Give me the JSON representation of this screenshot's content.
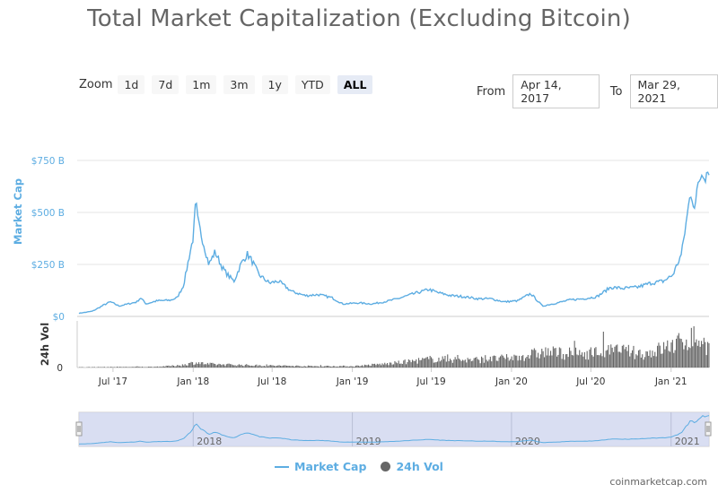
{
  "title": "Total Market Capitalization (Excluding Bitcoin)",
  "zoom": {
    "label": "Zoom",
    "buttons": [
      "1d",
      "7d",
      "1m",
      "3m",
      "1y",
      "YTD",
      "ALL"
    ],
    "active": "ALL"
  },
  "range": {
    "from_label": "From",
    "from_value": "Apr 14, 2017",
    "to_label": "To",
    "to_value": "Mar 29, 2021"
  },
  "legend": {
    "market_cap": "Market Cap",
    "volume": "24h Vol"
  },
  "footer": "coinmarketcap.com",
  "colors": {
    "market_cap": "#5dade2",
    "volume": "#666666",
    "navigator_fill": "#cfd6ef"
  },
  "chart_data": {
    "type": "line",
    "x_ticks": [
      "Jul '17",
      "Jan '18",
      "Jul '18",
      "Jan '19",
      "Jul '19",
      "Jan '20",
      "Jul '20",
      "Jan '21"
    ],
    "navigator_ticks": [
      "2018",
      "2019",
      "2020",
      "2021"
    ],
    "y_axis": {
      "label": "Market Cap",
      "ticks": [
        "$0",
        "$250 B",
        "$500 B",
        "$750 B"
      ],
      "ylim": [
        0,
        750
      ]
    },
    "volume_axis": {
      "label": "24h Vol",
      "ticks": [
        "0"
      ]
    },
    "series": [
      {
        "name": "Market Cap",
        "unit": "USD billions",
        "points": [
          [
            "2017-04-14",
            15
          ],
          [
            "2017-05-15",
            25
          ],
          [
            "2017-06-10",
            55
          ],
          [
            "2017-06-25",
            70
          ],
          [
            "2017-07-15",
            50
          ],
          [
            "2017-08-05",
            60
          ],
          [
            "2017-08-25",
            70
          ],
          [
            "2017-09-02",
            90
          ],
          [
            "2017-09-15",
            60
          ],
          [
            "2017-10-10",
            75
          ],
          [
            "2017-11-10",
            78
          ],
          [
            "2017-11-25",
            90
          ],
          [
            "2017-12-10",
            150
          ],
          [
            "2017-12-22",
            280
          ],
          [
            "2018-01-01",
            380
          ],
          [
            "2018-01-07",
            550
          ],
          [
            "2018-01-12",
            450
          ],
          [
            "2018-01-20",
            390
          ],
          [
            "2018-02-06",
            250
          ],
          [
            "2018-02-20",
            310
          ],
          [
            "2018-03-10",
            230
          ],
          [
            "2018-03-25",
            190
          ],
          [
            "2018-04-05",
            170
          ],
          [
            "2018-04-20",
            250
          ],
          [
            "2018-05-05",
            300
          ],
          [
            "2018-05-15",
            270
          ],
          [
            "2018-06-01",
            200
          ],
          [
            "2018-06-25",
            160
          ],
          [
            "2018-07-15",
            170
          ],
          [
            "2018-08-15",
            120
          ],
          [
            "2018-09-15",
            100
          ],
          [
            "2018-10-15",
            105
          ],
          [
            "2018-11-15",
            90
          ],
          [
            "2018-12-10",
            60
          ],
          [
            "2019-01-15",
            65
          ],
          [
            "2019-02-15",
            60
          ],
          [
            "2019-03-15",
            70
          ],
          [
            "2019-04-15",
            85
          ],
          [
            "2019-05-15",
            105
          ],
          [
            "2019-06-26",
            130
          ],
          [
            "2019-07-15",
            115
          ],
          [
            "2019-08-15",
            100
          ],
          [
            "2019-09-15",
            95
          ],
          [
            "2019-10-15",
            85
          ],
          [
            "2019-11-15",
            85
          ],
          [
            "2019-12-15",
            70
          ],
          [
            "2020-01-15",
            75
          ],
          [
            "2020-02-14",
            110
          ],
          [
            "2020-03-12",
            50
          ],
          [
            "2020-04-15",
            65
          ],
          [
            "2020-05-15",
            80
          ],
          [
            "2020-06-15",
            85
          ],
          [
            "2020-07-15",
            95
          ],
          [
            "2020-08-15",
            140
          ],
          [
            "2020-09-15",
            135
          ],
          [
            "2020-10-15",
            140
          ],
          [
            "2020-11-15",
            160
          ],
          [
            "2020-12-15",
            170
          ],
          [
            "2021-01-05",
            200
          ],
          [
            "2021-01-25",
            300
          ],
          [
            "2021-02-15",
            600
          ],
          [
            "2021-02-25",
            520
          ],
          [
            "2021-03-05",
            650
          ],
          [
            "2021-03-15",
            700
          ],
          [
            "2021-03-20",
            680
          ],
          [
            "2021-03-29",
            715
          ]
        ]
      },
      {
        "name": "24h Vol",
        "unit": "relative",
        "points": [
          [
            "2017-04-14",
            0.01
          ],
          [
            "2017-10-01",
            0.02
          ],
          [
            "2017-12-01",
            0.06
          ],
          [
            "2018-01-05",
            0.15
          ],
          [
            "2018-02-01",
            0.1
          ],
          [
            "2018-06-01",
            0.06
          ],
          [
            "2018-10-01",
            0.04
          ],
          [
            "2019-01-01",
            0.04
          ],
          [
            "2019-04-01",
            0.12
          ],
          [
            "2019-07-01",
            0.25
          ],
          [
            "2019-10-01",
            0.22
          ],
          [
            "2020-01-01",
            0.28
          ],
          [
            "2020-03-15",
            0.45
          ],
          [
            "2020-06-01",
            0.4
          ],
          [
            "2020-09-01",
            0.5
          ],
          [
            "2020-11-01",
            0.4
          ],
          [
            "2021-01-15",
            0.7
          ],
          [
            "2021-02-20",
            0.9
          ],
          [
            "2021-03-29",
            0.6
          ]
        ]
      }
    ]
  }
}
